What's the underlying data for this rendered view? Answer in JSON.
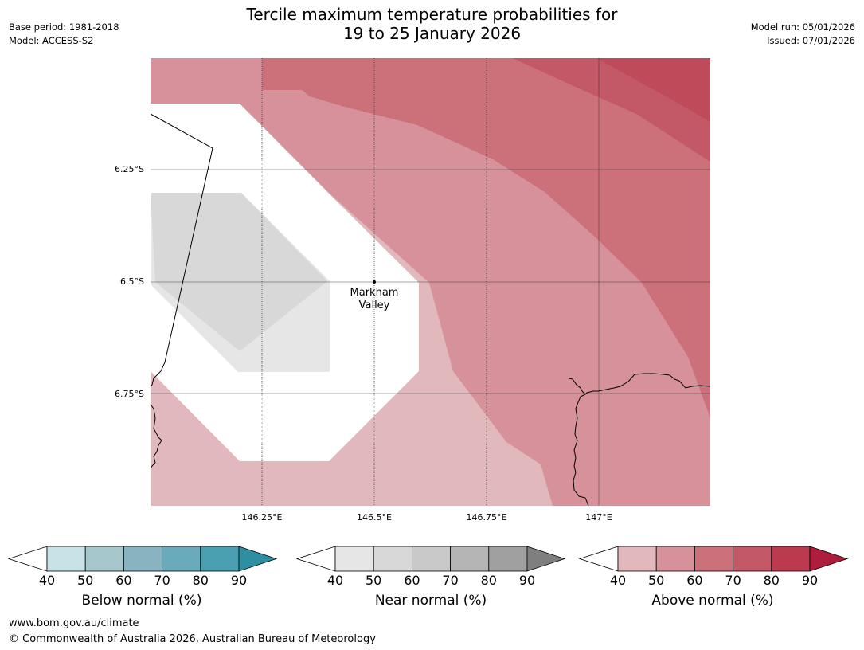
{
  "header": {
    "title_line1": "Tercile maximum temperature probabilities for",
    "title_line2": "19 to 25 January 2026",
    "base_period": "Base period: 1981-2018",
    "model": "Model: ACCESS-S2",
    "model_run": "Model run: 05/01/2026",
    "issued": "Issued: 07/01/2026"
  },
  "map": {
    "place_label_line1": "Markham",
    "place_label_line2": "Valley",
    "lat_labels": [
      "6.25°S",
      "6.5°S",
      "6.75°S"
    ],
    "lon_labels": [
      "146.25°E",
      "146.5°E",
      "146.75°E",
      "147°E"
    ]
  },
  "colorbars": {
    "below": {
      "title": "Below normal (%)",
      "ticks": [
        "40",
        "50",
        "60",
        "70",
        "80",
        "90"
      ],
      "colors": [
        "#c9e2e7",
        "#a6c7cc",
        "#88b4c1",
        "#6aabbb",
        "#4a9fb0",
        "#2f8fa2"
      ]
    },
    "near": {
      "title": "Near normal (%)",
      "ticks": [
        "40",
        "50",
        "60",
        "70",
        "80",
        "90"
      ],
      "colors": [
        "#e6e6e6",
        "#d8d8d8",
        "#c9c9c9",
        "#b5b5b5",
        "#a0a0a0",
        "#7f7f7f"
      ]
    },
    "above": {
      "title": "Above normal (%)",
      "ticks": [
        "40",
        "50",
        "60",
        "70",
        "80",
        "90"
      ],
      "colors": [
        "#e1b9bd",
        "#d6919a",
        "#cc7079",
        "#c35867",
        "#bb3a4d",
        "#ad1e3c"
      ]
    }
  },
  "footer": {
    "url": "www.bom.gov.au/climate",
    "copyright": "© Commonwealth of Australia 2026, Australian Bureau of Meteorology"
  }
}
